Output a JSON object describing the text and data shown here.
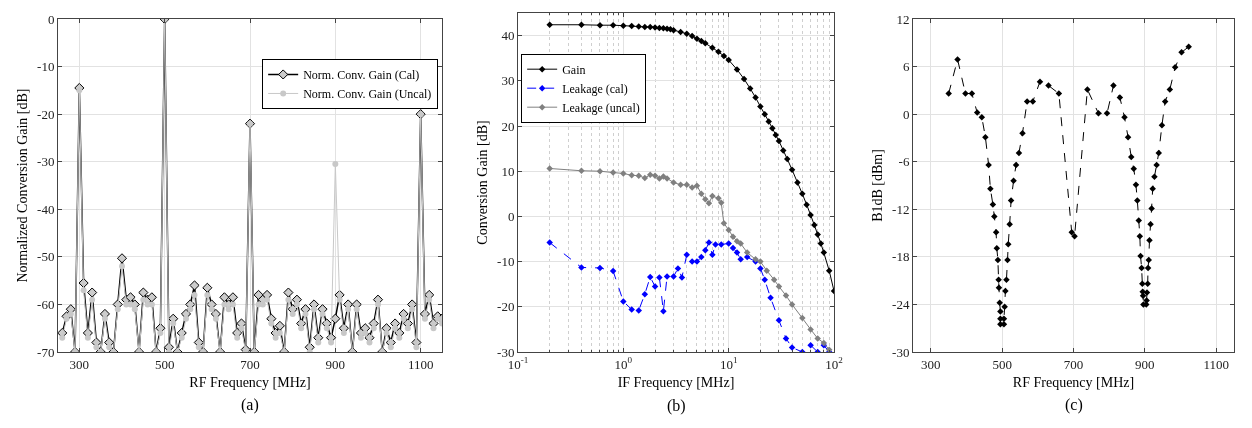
{
  "chart_data": [
    {
      "type": "line",
      "xlabel": "RF Frequency [MHz]",
      "ylabel": "Normalized Conversion Gain [dB]",
      "annotations": [
        "(a)"
      ],
      "xlim": [
        250,
        1150
      ],
      "xticks": [
        300,
        500,
        700,
        900,
        1100
      ],
      "ylim": [
        -70,
        0
      ],
      "yticks": [
        -70,
        -60,
        -50,
        -40,
        -30,
        -20,
        -10,
        0
      ],
      "grid": true,
      "legend": "top right",
      "line_style": "solid",
      "x": [
        260,
        270,
        280,
        290,
        300,
        310,
        320,
        330,
        340,
        350,
        360,
        370,
        380,
        390,
        400,
        410,
        420,
        430,
        440,
        450,
        460,
        470,
        480,
        490,
        500,
        510,
        520,
        530,
        540,
        550,
        560,
        570,
        580,
        590,
        600,
        610,
        620,
        630,
        640,
        650,
        660,
        670,
        680,
        690,
        700,
        710,
        720,
        730,
        740,
        750,
        760,
        770,
        780,
        790,
        800,
        810,
        820,
        830,
        840,
        850,
        860,
        870,
        880,
        890,
        900,
        910,
        920,
        930,
        940,
        950,
        960,
        970,
        980,
        990,
        1000,
        1010,
        1020,
        1030,
        1040,
        1050,
        1060,
        1070,
        1080,
        1090,
        1100,
        1110,
        1120,
        1130,
        1140,
        1150
      ],
      "series": [
        {
          "name": "Norm. Conv. Gain (Cal)",
          "color": "#000000",
          "marker": "diamond",
          "values": [
            -66,
            -62.5,
            -61,
            -70,
            -14.5,
            -55.5,
            -66,
            -57.5,
            -68,
            -70,
            -62,
            -68,
            -70,
            -60,
            -50.3,
            -59,
            -58.5,
            -60,
            -70,
            -57.5,
            -59,
            -58.5,
            -70,
            -65,
            0,
            -69,
            -63,
            -70,
            -66,
            -62,
            -60,
            -56,
            -68,
            -70,
            -56.5,
            -60,
            -62,
            -70,
            -58.5,
            -60,
            -58.5,
            -66,
            -64,
            -69.5,
            -22,
            -70,
            -58,
            -59,
            -58,
            -63,
            -66,
            -64.5,
            -70,
            -57.5,
            -61,
            -59,
            -64,
            -61,
            -69,
            -60,
            -67,
            -61,
            -64,
            -67,
            -63,
            -58,
            -65,
            -60,
            -70,
            -60,
            -66,
            -65,
            -67,
            -64,
            -59,
            -70,
            -65,
            -68,
            -64,
            -66,
            -62,
            -64,
            -60,
            -68,
            -20,
            -62,
            -58,
            -64,
            -62.5,
            -63
          ]
        },
        {
          "name": "Norm. Conv. Gain (Uncal)",
          "color": "#c8c8c8",
          "marker": "circle",
          "values": [
            -67,
            -63,
            -62,
            -70,
            -15,
            -57,
            -67,
            -59,
            -69,
            -70,
            -63,
            -69,
            -70,
            -61,
            -52,
            -60,
            -60,
            -61,
            -70,
            -59,
            -60,
            -60,
            -70,
            -66,
            0,
            -70,
            -64,
            -70,
            -67,
            -63,
            -61,
            -58,
            -69,
            -70,
            -58,
            -61,
            -63,
            -70,
            -60,
            -61,
            -60,
            -67,
            -65,
            -70,
            -22,
            -70,
            -60,
            -60,
            -59,
            -64,
            -67,
            -66,
            -70,
            -59,
            -62,
            -60,
            -65,
            -62,
            -70,
            -61,
            -68,
            -62,
            -65,
            -68,
            -30.5,
            -59,
            -66,
            -61,
            -70,
            -61,
            -67,
            -66,
            -68,
            -65,
            -60,
            -70,
            -66,
            -69,
            -65,
            -67,
            -63,
            -65,
            -61,
            -69,
            -20,
            -63,
            -59,
            -65,
            -63,
            -64
          ]
        }
      ]
    },
    {
      "type": "line",
      "xlabel": "IF Frequency [MHz]",
      "ylabel": "Conversion Gain [dB]",
      "annotations": [
        "(b)"
      ],
      "log": "x",
      "xlim": [
        0.1,
        100
      ],
      "xticks": [
        {
          "value": 0.1,
          "label": "10$^{-1}$"
        },
        {
          "value": 1,
          "label": "10$^{0}$"
        },
        {
          "value": 10,
          "label": "10$^{1}$"
        },
        {
          "value": 100,
          "label": "10$^{2}$"
        }
      ],
      "ylim": [
        -30,
        45
      ],
      "yticks": [
        -30,
        -20,
        -10,
        0,
        10,
        20,
        30,
        40
      ],
      "grid": true,
      "legend": "top left",
      "marker": "diamond",
      "series": [
        {
          "name": "Gain",
          "color": "#000000",
          "line_style": "solid",
          "x": [
            0.2,
            0.4,
            0.6,
            0.8,
            1,
            1.2,
            1.4,
            1.6,
            1.8,
            2,
            2.2,
            2.4,
            2.6,
            2.8,
            3,
            3.5,
            4,
            4.5,
            5,
            5.5,
            6,
            7,
            8,
            9,
            10,
            12,
            14,
            16,
            18,
            20,
            22,
            24,
            26,
            28,
            30,
            33,
            36,
            40,
            45,
            50,
            55,
            60,
            65,
            70,
            75,
            80,
            90,
            100
          ],
          "values": [
            42.4,
            42.4,
            42.3,
            42.3,
            42.2,
            42.1,
            42,
            41.9,
            41.9,
            41.8,
            41.7,
            41.6,
            41.5,
            41.4,
            41.2,
            40.8,
            40.4,
            39.9,
            39.3,
            38.8,
            38.3,
            37.3,
            36.4,
            35.5,
            34.6,
            32.5,
            30.4,
            28.3,
            26.3,
            24.3,
            22.6,
            21,
            19.5,
            18,
            16.7,
            14.6,
            12.7,
            10.3,
            7.5,
            5,
            2.6,
            0.3,
            -1.9,
            -4,
            -6,
            -8,
            -12,
            -16.5
          ]
        },
        {
          "name": "Leakage (cal)",
          "color": "#0000ff",
          "line_style": "dashed",
          "x": [
            0.2,
            0.4,
            0.6,
            0.8,
            1,
            1.2,
            1.4,
            1.6,
            1.8,
            2,
            2.2,
            2.4,
            2.6,
            3,
            3.3,
            3.6,
            4,
            4.5,
            5,
            5.5,
            6,
            6.5,
            7,
            7.5,
            8.5,
            10,
            11,
            12,
            13,
            15,
            18,
            20,
            22,
            25,
            30,
            35,
            40,
            50,
            60,
            70,
            80,
            90
          ],
          "values": [
            -5.8,
            -11.3,
            -11.4,
            -12.1,
            -18.8,
            -20.6,
            -20.8,
            -17.2,
            -13.4,
            -15.5,
            -13.5,
            -21,
            -13.3,
            -13.3,
            -11.5,
            -13.5,
            -8.5,
            -10,
            -10,
            -9,
            -7.5,
            -5.8,
            -8.5,
            -6.2,
            -6.2,
            -6,
            -7,
            -8,
            -9.5,
            -9,
            -10,
            -11.5,
            -14,
            -18,
            -23,
            -27,
            -29,
            -30,
            -28.5,
            -30,
            -28.5,
            -30
          ]
        },
        {
          "name": "Leakage (uncal)",
          "color": "#808080",
          "line_style": "solid",
          "x": [
            0.2,
            0.4,
            0.6,
            0.8,
            1,
            1.2,
            1.4,
            1.6,
            1.8,
            2,
            2.2,
            2.4,
            2.6,
            3,
            3.5,
            4,
            4.5,
            5,
            5.5,
            6,
            6.5,
            7,
            8,
            8.5,
            9,
            10,
            11,
            12,
            13,
            15,
            18,
            20,
            23,
            27,
            30,
            35,
            40,
            50,
            60,
            70,
            80,
            90
          ],
          "values": [
            10.6,
            10.1,
            10,
            9.7,
            9.5,
            9.1,
            9,
            8.5,
            9.2,
            9,
            8.4,
            8.8,
            8.4,
            7.5,
            7,
            7,
            6.4,
            6.8,
            5,
            3.8,
            2.9,
            4.5,
            4,
            3,
            -1.5,
            -3,
            -4.5,
            -5.5,
            -6,
            -8,
            -9.5,
            -10,
            -12,
            -14,
            -15.5,
            -17.5,
            -19.5,
            -22.5,
            -25,
            -27,
            -28,
            -29.5
          ]
        }
      ]
    },
    {
      "type": "line",
      "xlabel": "RF Frequency [MHz]",
      "ylabel": "B1dB [dBm]",
      "annotations": [
        "(c)"
      ],
      "xlim": [
        250,
        1150
      ],
      "xticks": [
        300,
        500,
        700,
        900,
        1100
      ],
      "ylim": [
        -30,
        12
      ],
      "yticks": [
        -30,
        -24,
        -18,
        -12,
        -6,
        0,
        6,
        12
      ],
      "grid": true,
      "marker": "diamond",
      "line_style": "dashed",
      "series": [
        {
          "color": "#000000",
          "x": [
            350,
            375,
            397,
            415,
            430,
            443,
            453,
            462,
            467,
            474,
            478,
            483,
            485,
            488,
            490,
            491,
            493,
            495,
            495,
            495,
            505,
            505,
            507,
            509,
            512,
            515,
            517,
            521,
            525,
            532,
            539,
            547,
            557,
            570,
            586,
            606,
            630,
            659,
            695,
            703,
            739,
            770,
            794,
            812,
            830,
            843,
            853,
            862,
            869,
            875,
            879,
            883,
            886,
            888,
            891,
            893,
            894,
            895,
            896,
            904,
            905,
            906,
            908,
            909,
            911,
            913,
            916,
            919,
            922,
            927,
            933,
            939,
            948,
            957,
            970,
            985,
            1003,
            1023
          ],
          "values": [
            2.6,
            6.9,
            2.6,
            2.6,
            0.2,
            -0.4,
            -2.9,
            -6.4,
            -9.4,
            -11.4,
            -12.9,
            -14.9,
            -16.9,
            -18.4,
            -20.9,
            -21.9,
            -23.8,
            -24.9,
            -25.8,
            -26.5,
            -26.5,
            -25.8,
            -24.3,
            -22.3,
            -20.9,
            -18.4,
            -16.4,
            -13.9,
            -10.9,
            -8.4,
            -6.4,
            -4.9,
            -2.4,
            1.6,
            1.6,
            4.1,
            3.6,
            2.6,
            -14.9,
            -15.4,
            3.1,
            0.1,
            0.1,
            3.6,
            2.1,
            -0.4,
            -2.9,
            -5.4,
            -6.9,
            -8.9,
            -10.9,
            -13.4,
            -15.4,
            -17.9,
            -19.4,
            -21.4,
            -22.4,
            -22.9,
            -24,
            -24,
            -23.5,
            -22.5,
            -21.4,
            -19.4,
            -18.4,
            -15.9,
            -13.9,
            -11.9,
            -9.4,
            -7.9,
            -6.4,
            -4.9,
            -1.4,
            1.6,
            3.1,
            5.9,
            7.8,
            8.5
          ]
        }
      ]
    }
  ]
}
